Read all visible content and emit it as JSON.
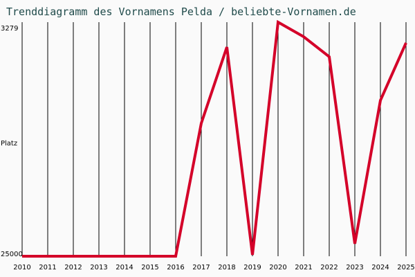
{
  "title": "Trenddiagramm des Vornamens Pelda / beliebte-Vornamen.de",
  "colors": {
    "line": "#d40029",
    "grid": "#000000",
    "title": "#1f4a4a",
    "background": "#fafafa"
  },
  "chart_data": {
    "type": "line",
    "title": "Trenddiagramm des Vornamens Pelda / beliebte-Vornamen.de",
    "xlabel": "",
    "ylabel": "Platz",
    "y_inverted": true,
    "ylim": [
      3279,
      25000
    ],
    "y_tick_labels": [
      "3279",
      "Platz",
      "25000"
    ],
    "grid": "vertical",
    "categories": [
      "2010",
      "2011",
      "2012",
      "2013",
      "2014",
      "2015",
      "2016",
      "2017",
      "2018",
      "2019",
      "2020",
      "2021",
      "2022",
      "2023",
      "2024",
      "2025"
    ],
    "series": [
      {
        "name": "Pelda",
        "values": [
          25000,
          25000,
          25000,
          25000,
          25000,
          25000,
          25000,
          12660,
          5590,
          24870,
          3279,
          4630,
          6490,
          23840,
          10540,
          5200
        ]
      }
    ]
  },
  "axis": {
    "top_label": "3279",
    "mid_label": "Platz",
    "bottom_label": "25000"
  }
}
